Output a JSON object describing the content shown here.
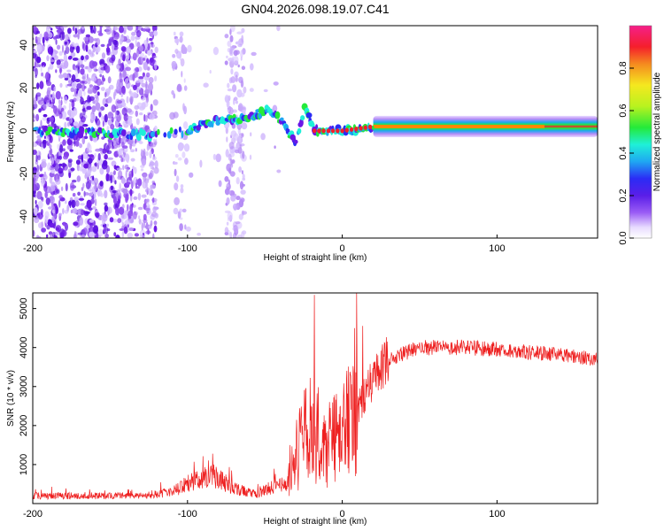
{
  "title": "GN04.2026.098.19.07.C41",
  "chart_data": [
    {
      "type": "heatmap",
      "name": "spectrogram",
      "xlabel": "Height of straight line (km)",
      "ylabel": "Frequency (Hz)",
      "xlim": [
        -200,
        165
      ],
      "ylim": [
        -50,
        49
      ],
      "x_ticks": [
        -200,
        -100,
        0,
        100
      ],
      "x_tick_labels": [
        "-200",
        "-100",
        "0",
        "100"
      ],
      "y_ticks": [
        -40,
        -20,
        0,
        20,
        40
      ],
      "y_tick_labels": [
        "-40",
        "-20",
        "0",
        "20",
        "40"
      ],
      "colorbar": {
        "label": "Normalized spectral amplitude",
        "range": [
          0,
          1
        ],
        "ticks": [
          0.0,
          0.2,
          0.4,
          0.6,
          0.8
        ],
        "tick_labels": [
          "0.0",
          "0.2",
          "0.4",
          "0.6",
          "0.8"
        ]
      },
      "ridge": [
        {
          "x": -200,
          "freq": 0
        },
        {
          "x": -120,
          "freq": -2
        },
        {
          "x": -100,
          "freq": 0
        },
        {
          "x": -80,
          "freq": 5
        },
        {
          "x": -60,
          "freq": 6
        },
        {
          "x": -48,
          "freq": 10
        },
        {
          "x": -40,
          "freq": 5
        },
        {
          "x": -30,
          "freq": -5
        },
        {
          "x": -24,
          "freq": 12
        },
        {
          "x": -18,
          "freq": 0
        },
        {
          "x": 0,
          "freq": 0
        },
        {
          "x": 20,
          "freq": 2
        },
        {
          "x": 165,
          "freq": 2
        }
      ],
      "steady_band": {
        "x_from": 20,
        "x_to": 165,
        "freq": 2,
        "amplitude": 1.0
      }
    },
    {
      "type": "line",
      "name": "snr",
      "xlabel": "Height of straight line (km)",
      "ylabel": "SNR (10 * v/v)",
      "xlim": [
        -200,
        165
      ],
      "ylim": [
        0,
        5400
      ],
      "x_ticks": [
        -200,
        -100,
        0,
        100
      ],
      "x_tick_labels": [
        "-200",
        "-100",
        "0",
        "100"
      ],
      "y_ticks": [
        1000,
        2000,
        3000,
        4000,
        5000
      ],
      "y_tick_labels": [
        "1000",
        "2000",
        "3000",
        "4000",
        "5000"
      ],
      "color": "#ee2020",
      "envelope": [
        {
          "x": -200,
          "y": 200
        },
        {
          "x": -130,
          "y": 200
        },
        {
          "x": -110,
          "y": 300
        },
        {
          "x": -95,
          "y": 600
        },
        {
          "x": -85,
          "y": 750
        },
        {
          "x": -70,
          "y": 400
        },
        {
          "x": -55,
          "y": 250
        },
        {
          "x": -35,
          "y": 600
        },
        {
          "x": -28,
          "y": 1400
        },
        {
          "x": -20,
          "y": 2000
        },
        {
          "x": -10,
          "y": 1500
        },
        {
          "x": 0,
          "y": 1800
        },
        {
          "x": 10,
          "y": 2400
        },
        {
          "x": 20,
          "y": 3200
        },
        {
          "x": 30,
          "y": 3700
        },
        {
          "x": 50,
          "y": 4000
        },
        {
          "x": 80,
          "y": 4000
        },
        {
          "x": 100,
          "y": 3950
        },
        {
          "x": 130,
          "y": 3850
        },
        {
          "x": 165,
          "y": 3700
        }
      ],
      "peak": {
        "x": -18,
        "y": 5350
      }
    }
  ]
}
